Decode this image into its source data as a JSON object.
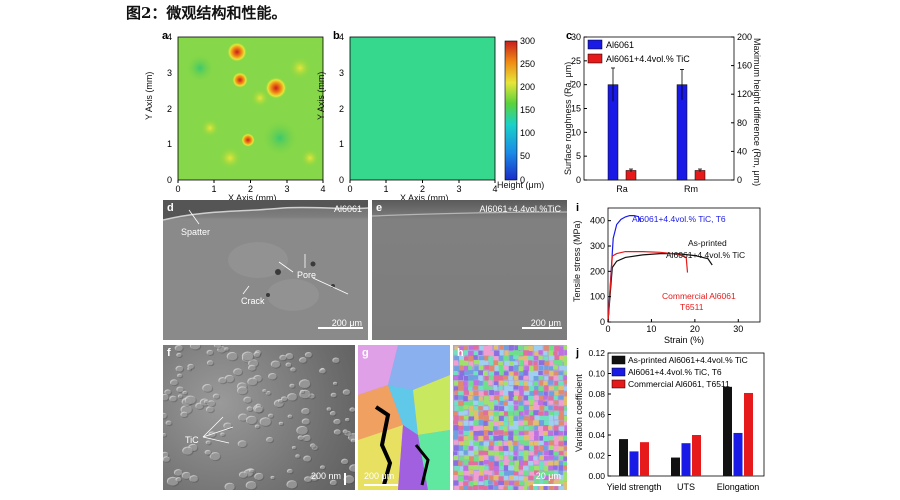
{
  "figure": {
    "title": "图2：微观结构和性能。"
  },
  "panel_a": {
    "label": "a",
    "xlabel": "X Axis (mm)",
    "ylabel": "Y Axis (mm)",
    "ticks": [
      "0",
      "1",
      "2",
      "3",
      "4"
    ]
  },
  "panel_b": {
    "label": "b",
    "xlabel": "X Axis (mm)",
    "ylabel": "Y Axis (mm)",
    "ticks": [
      "0",
      "1",
      "2",
      "3",
      "4"
    ]
  },
  "colorbar": {
    "title": "Height (μm)",
    "ticks": [
      "300",
      "250",
      "200",
      "150",
      "100",
      "50",
      "0"
    ],
    "low_color": "#1a2cc8",
    "high_color": "#c81e1e"
  },
  "panel_c": {
    "label": "c",
    "chart_data": {
      "type": "bar",
      "categories": [
        "Ra",
        "Rm"
      ],
      "series": [
        {
          "name": "Al6061",
          "color": "#1a1ae6",
          "values": [
            20,
            20
          ],
          "errors": [
            3.5,
            3.2
          ]
        },
        {
          "name": "Al6061+4.4vol.% TiC",
          "color": "#e61a1a",
          "values": [
            2,
            2
          ],
          "errors": [
            0.3,
            0.3
          ]
        }
      ],
      "ylabel": "Surface roughness (Ra, μm)",
      "y2label": "Maximum height difference (Rm, μm)",
      "ylim": [
        0,
        30
      ],
      "y2lim": [
        0,
        200
      ],
      "yticks": [
        "0",
        "5",
        "10",
        "15",
        "20",
        "25",
        "30"
      ],
      "y2ticks": [
        "0",
        "40",
        "80",
        "120",
        "160",
        "200"
      ]
    }
  },
  "panel_d": {
    "label": "d",
    "title": "Al6061",
    "scale": "200 μm",
    "ann_spatter": "Spatter",
    "ann_pore": "Pore",
    "ann_crack": "Crack"
  },
  "panel_e": {
    "label": "e",
    "title": "Al6061+4.4vol.%TiC",
    "scale": "200 μm"
  },
  "panel_i": {
    "label": "i",
    "chart_data": {
      "type": "line",
      "xlabel": "Strain (%)",
      "ylabel": "Tensile stress (MPa)",
      "xlim": [
        0,
        35
      ],
      "ylim": [
        0,
        450
      ],
      "xticks": [
        "0",
        "10",
        "20",
        "30"
      ],
      "yticks": [
        "0",
        "100",
        "200",
        "300",
        "400"
      ],
      "series": [
        {
          "name": "Al6061+4.4vol.% TiC, T6",
          "color": "#1a1ae6",
          "x": [
            0,
            1.2,
            2,
            3,
            4,
            5,
            6,
            7,
            7.5
          ],
          "y": [
            0,
            330,
            385,
            405,
            415,
            420,
            420,
            416,
            395
          ]
        },
        {
          "name": "As-printed Al6061+4.4vol.% TiC",
          "color": "#111111",
          "x": [
            0,
            1,
            2,
            4,
            8,
            12,
            16,
            20,
            23,
            24
          ],
          "y": [
            0,
            215,
            240,
            255,
            265,
            270,
            270,
            262,
            250,
            225
          ]
        },
        {
          "name": "Commercial Al6061 T6511",
          "color": "#e61a1a",
          "x": [
            0,
            1,
            2,
            4,
            8,
            12,
            16,
            18,
            18.3
          ],
          "y": [
            0,
            260,
            270,
            278,
            278,
            275,
            268,
            255,
            195
          ]
        }
      ],
      "annotations": [
        "Al6061+4.4vol.% TiC, T6",
        "As-printed",
        "Al6061+4.4vol.% TiC",
        "Commercial Al6061",
        "T6511"
      ]
    }
  },
  "panel_f": {
    "label": "f",
    "ann_tic": "TiC",
    "scale": "200 nm"
  },
  "panel_g": {
    "label": "g",
    "scale": "200 μm"
  },
  "panel_h": {
    "label": "h",
    "scale": "20 μm"
  },
  "panel_j": {
    "label": "j",
    "chart_data": {
      "type": "bar",
      "categories": [
        "Yield strength",
        "UTS",
        "Elongation"
      ],
      "series": [
        {
          "name": "As-printed Al6061+4.4vol.% TiC",
          "color": "#111111",
          "values": [
            0.036,
            0.018,
            0.087
          ]
        },
        {
          "name": "Al6061+4.4vol.% TiC, T6",
          "color": "#1a1ae6",
          "values": [
            0.024,
            0.032,
            0.042
          ]
        },
        {
          "name": "Commercial Al6061, T6511",
          "color": "#e61a1a",
          "values": [
            0.033,
            0.04,
            0.081
          ]
        }
      ],
      "ylabel": "Variation coefficient",
      "ylim": [
        0,
        0.12
      ],
      "yticks": [
        "0.00",
        "0.02",
        "0.04",
        "0.06",
        "0.08",
        "0.10",
        "0.12"
      ]
    }
  }
}
